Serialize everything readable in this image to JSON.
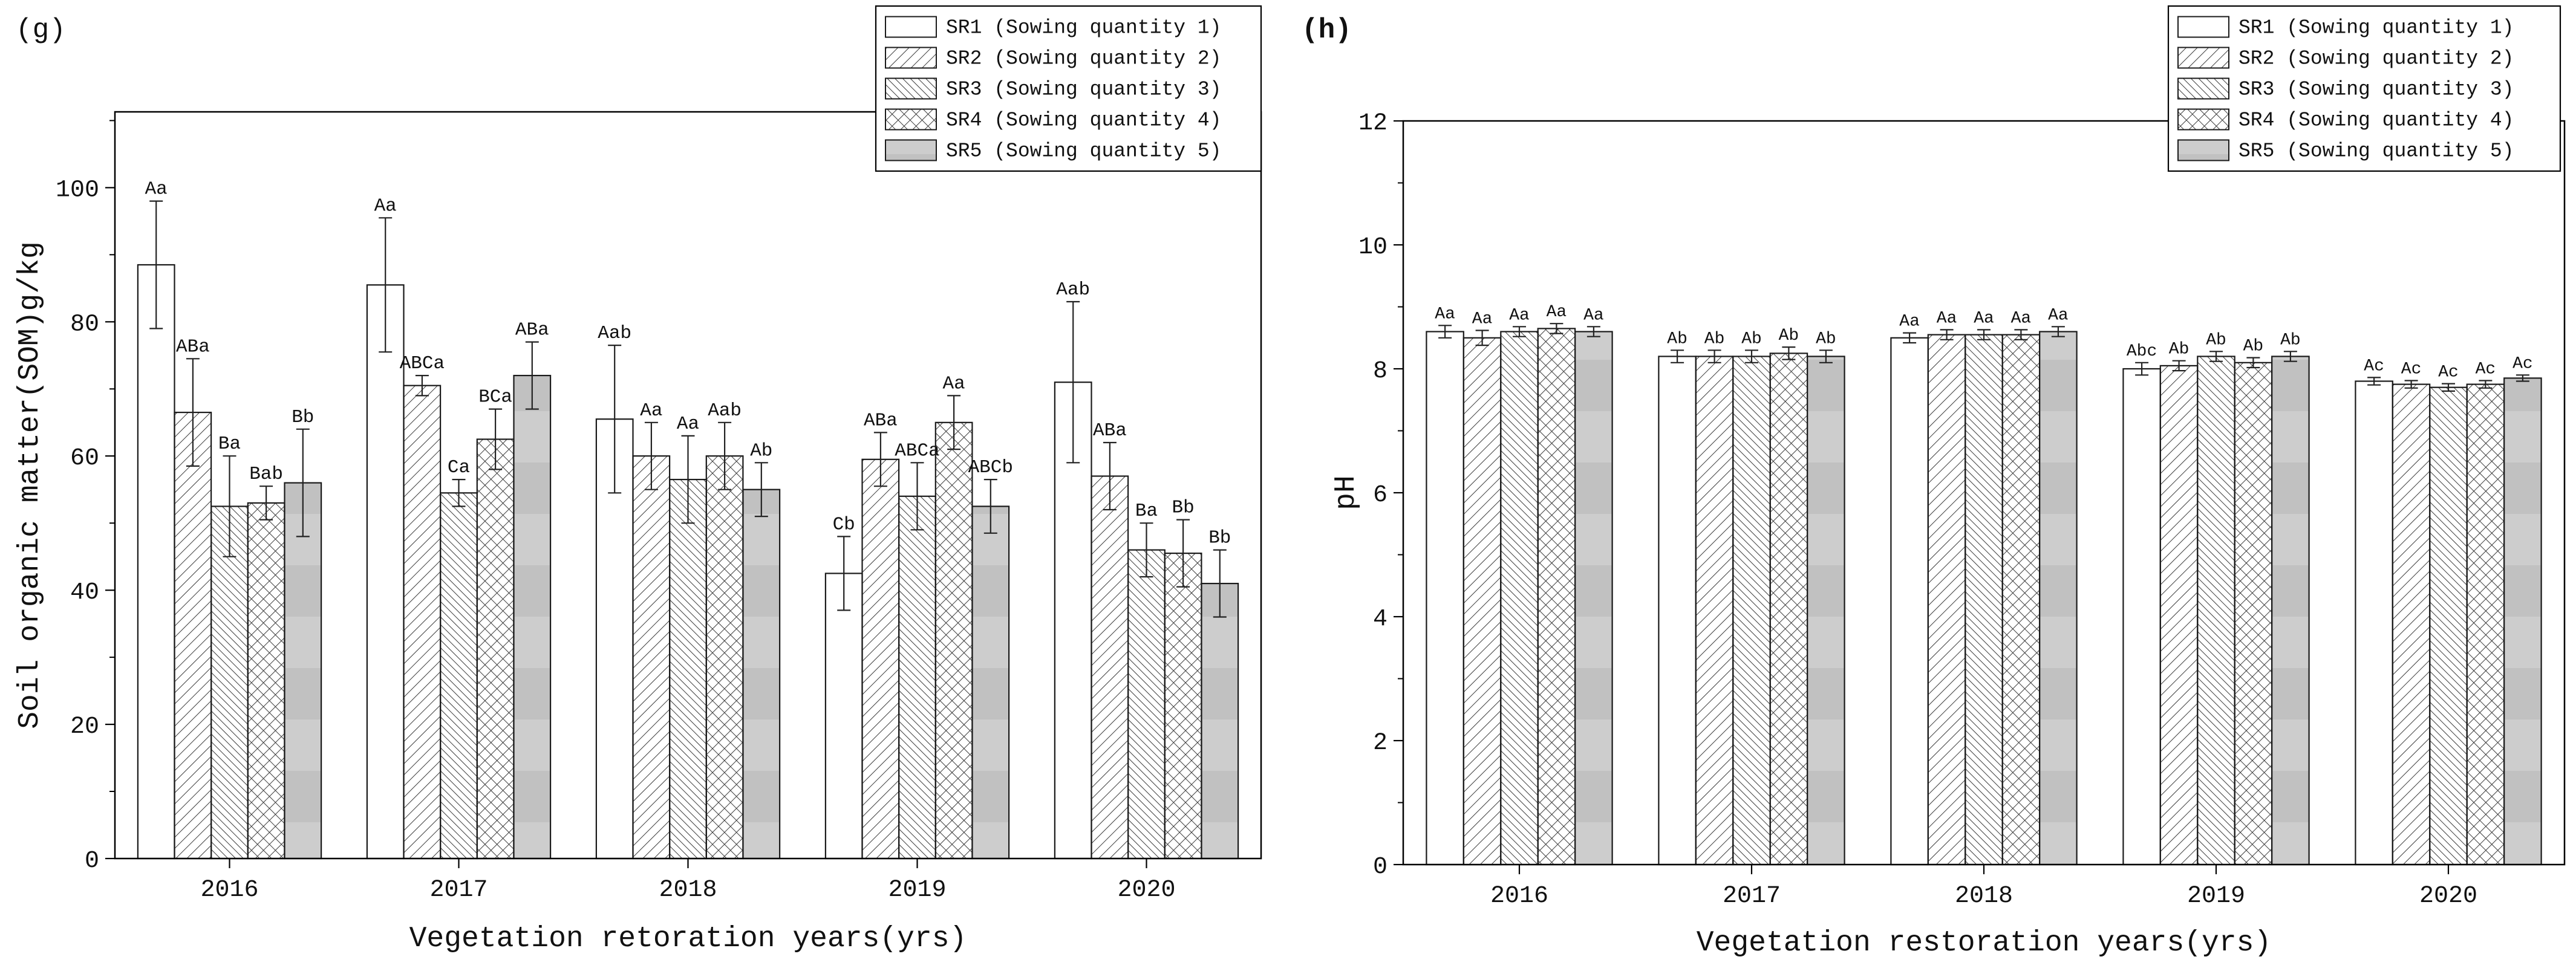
{
  "figure": {
    "panel_labels": [
      "(g)",
      "(h)"
    ]
  },
  "colors": {
    "bar_outline": "#1a1a1a",
    "axis": "#000000",
    "hatch": "#3c3c3c",
    "gray_bar": "#c9c9c9"
  },
  "chart_data": [
    {
      "type": "bar",
      "panel": "(g)",
      "title": "",
      "xlabel": "Vegetation retoration years(yrs)",
      "ylabel": "Soil organic matter(SOM)g/kg",
      "ylim": [
        0,
        111
      ],
      "yticks": [
        0,
        20,
        40,
        60,
        80,
        100
      ],
      "grid": false,
      "legend_position": "top-right",
      "categories": [
        "2016",
        "2017",
        "2018",
        "2019",
        "2020"
      ],
      "series": [
        {
          "name": "SR1 (Sowing quantity 1)",
          "pattern": "plain-white",
          "values": [
            88.5,
            85.5,
            65.5,
            42.5,
            71
          ],
          "errors": [
            9.5,
            10,
            11,
            5.5,
            12
          ],
          "sig_labels": [
            "Aa",
            "Aa",
            "Aab",
            "Cb",
            "Aab"
          ]
        },
        {
          "name": "SR2 (Sowing quantity 2)",
          "pattern": "diagonal-forward-hatch",
          "values": [
            66.5,
            70.5,
            60,
            59.5,
            57
          ],
          "errors": [
            8,
            1.5,
            5,
            4,
            5
          ],
          "sig_labels": [
            "ABa",
            "ABCa",
            "Aa",
            "ABa",
            "ABa"
          ]
        },
        {
          "name": "SR3 (Sowing quantity 3)",
          "pattern": "diagonal-back-hatch",
          "values": [
            52.5,
            54.5,
            56.5,
            54,
            46
          ],
          "errors": [
            7.5,
            2,
            6.5,
            5,
            4
          ],
          "sig_labels": [
            "Ba",
            "Ca",
            "Aa",
            "ABCa",
            "Ba"
          ]
        },
        {
          "name": "SR4 (Sowing quantity 4)",
          "pattern": "cross-hatch",
          "values": [
            53,
            62.5,
            60,
            65,
            45.5
          ],
          "errors": [
            2.5,
            4.5,
            5,
            4,
            5
          ],
          "sig_labels": [
            "Bab",
            "BCa",
            "Aab",
            "Aa",
            "Bb"
          ]
        },
        {
          "name": "SR5 (Sowing quantity 5)",
          "pattern": "solid-gray",
          "values": [
            56,
            72,
            55,
            52.5,
            41
          ],
          "errors": [
            8,
            5,
            4,
            4,
            5
          ],
          "sig_labels": [
            "Bb",
            "ABa",
            "Ab",
            "ABCb",
            "Bb"
          ]
        }
      ]
    },
    {
      "type": "bar",
      "panel": "(h)",
      "title": "",
      "xlabel": "Vegetation restoration years(yrs)",
      "ylabel": "pH",
      "ylim": [
        0,
        12
      ],
      "yticks": [
        0,
        2,
        4,
        6,
        8,
        10,
        12
      ],
      "grid": false,
      "legend_position": "top-right",
      "categories": [
        "2016",
        "2017",
        "2018",
        "2019",
        "2020"
      ],
      "series": [
        {
          "name": "SR1 (Sowing quantity 1)",
          "pattern": "plain-white",
          "values": [
            8.6,
            8.2,
            8.5,
            8.0,
            7.8
          ],
          "errors": [
            0.1,
            0.1,
            0.08,
            0.1,
            0.06
          ],
          "sig_labels": [
            "Aa",
            "Ab",
            "Aa",
            "Abc",
            "Ac"
          ]
        },
        {
          "name": "SR2 (Sowing quantity 2)",
          "pattern": "diagonal-forward-hatch",
          "values": [
            8.5,
            8.2,
            8.55,
            8.05,
            7.75
          ],
          "errors": [
            0.12,
            0.1,
            0.08,
            0.08,
            0.06
          ],
          "sig_labels": [
            "Aa",
            "Ab",
            "Aa",
            "Ab",
            "Ac"
          ]
        },
        {
          "name": "SR3 (Sowing quantity 3)",
          "pattern": "diagonal-back-hatch",
          "values": [
            8.6,
            8.2,
            8.55,
            8.2,
            7.7
          ],
          "errors": [
            0.08,
            0.1,
            0.08,
            0.08,
            0.06
          ],
          "sig_labels": [
            "Aa",
            "Ab",
            "Aa",
            "Ab",
            "Ac"
          ]
        },
        {
          "name": "SR4 (Sowing quantity 4)",
          "pattern": "cross-hatch",
          "values": [
            8.65,
            8.25,
            8.55,
            8.1,
            7.75
          ],
          "errors": [
            0.08,
            0.1,
            0.08,
            0.08,
            0.06
          ],
          "sig_labels": [
            "Aa",
            "Ab",
            "Aa",
            "Ab",
            "Ac"
          ]
        },
        {
          "name": "SR5 (Sowing quantity 5)",
          "pattern": "solid-gray",
          "values": [
            8.6,
            8.2,
            8.6,
            8.2,
            7.85
          ],
          "errors": [
            0.08,
            0.1,
            0.08,
            0.08,
            0.05
          ],
          "sig_labels": [
            "Aa",
            "Ab",
            "Aa",
            "Ab",
            "Ac"
          ]
        }
      ]
    }
  ]
}
